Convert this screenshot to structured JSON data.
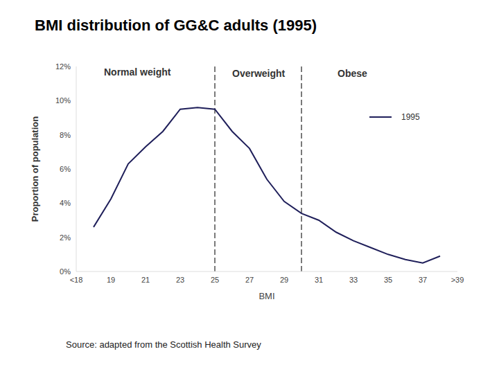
{
  "chart_data": {
    "type": "line",
    "title": "BMI distribution of GG&C adults (1995)",
    "x_label": "BMI",
    "y_label": "Proportion of population",
    "x": [
      18,
      19,
      20,
      21,
      22,
      23,
      24,
      25,
      26,
      27,
      28,
      29,
      30,
      31,
      32,
      33,
      34,
      35,
      36,
      37,
      38
    ],
    "series": [
      {
        "name": "1995",
        "color": "#1f1f5a",
        "values": [
          2.6,
          4.25,
          6.3,
          7.3,
          8.2,
          9.5,
          9.6,
          9.5,
          8.2,
          7.2,
          5.4,
          4.1,
          3.4,
          3.0,
          2.3,
          1.8,
          1.4,
          1.0,
          0.7,
          0.5,
          0.9
        ]
      }
    ],
    "xlim": [
      17,
      39
    ],
    "xticks": [
      {
        "value": 17,
        "label": "<18"
      },
      19,
      21,
      23,
      25,
      27,
      29,
      31,
      33,
      35,
      37,
      {
        "value": 39,
        "label": ">39"
      }
    ],
    "ylim": [
      0,
      12
    ],
    "yticks": [
      {
        "value": 0,
        "label": "0%"
      },
      {
        "value": 2,
        "label": "2%"
      },
      {
        "value": 4,
        "label": "4%"
      },
      {
        "value": 6,
        "label": "6%"
      },
      {
        "value": 8,
        "label": "8%"
      },
      {
        "value": 10,
        "label": "10%"
      },
      {
        "value": 12,
        "label": "12%"
      }
    ],
    "vertical_lines": [
      25,
      30
    ],
    "annotations": [
      "Normal weight",
      "Overweight",
      "Obese"
    ],
    "source": "Source: adapted from the Scottish Health Survey",
    "legend": "upper right",
    "grid": false
  }
}
